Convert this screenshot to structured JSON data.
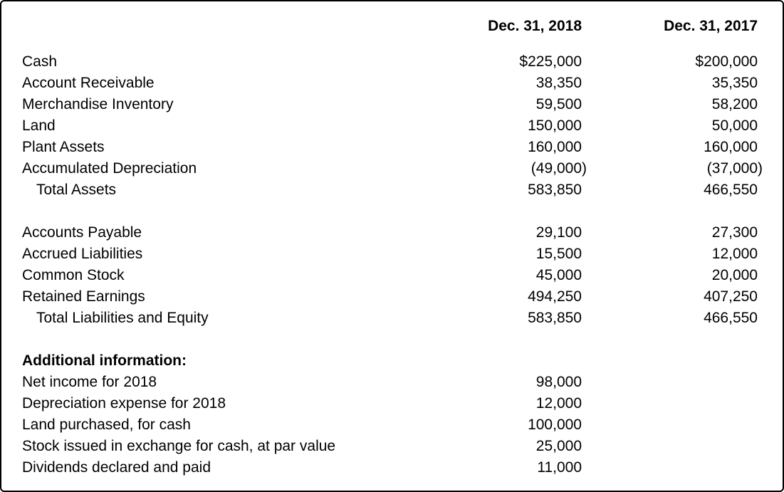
{
  "header": {
    "col_2018": "Dec. 31, 2018",
    "col_2017": "Dec. 31, 2017"
  },
  "balance_sheet": {
    "assets": [
      {
        "label": "Cash",
        "indent": false,
        "values": [
          "$225,000",
          "$200,000"
        ]
      },
      {
        "label": "Account Receivable",
        "indent": false,
        "values": [
          "38,350",
          "35,350"
        ]
      },
      {
        "label": "Merchandise Inventory",
        "indent": false,
        "values": [
          "59,500",
          "58,200"
        ]
      },
      {
        "label": "Land",
        "indent": false,
        "values": [
          "150,000",
          "50,000"
        ]
      },
      {
        "label": "Plant Assets",
        "indent": false,
        "values": [
          "160,000",
          "160,000"
        ]
      },
      {
        "label": "Accumulated Depreciation",
        "indent": false,
        "values": [
          "(49,000)",
          "(37,000)"
        ]
      },
      {
        "label": "Total Assets",
        "indent": true,
        "values": [
          "583,850",
          "466,550"
        ]
      }
    ],
    "liabilities_equity": [
      {
        "label": "Accounts Payable",
        "indent": false,
        "values": [
          "29,100",
          "27,300"
        ]
      },
      {
        "label": "Accrued Liabilities",
        "indent": false,
        "values": [
          "15,500",
          "12,000"
        ]
      },
      {
        "label": "Common Stock",
        "indent": false,
        "values": [
          "45,000",
          "20,000"
        ]
      },
      {
        "label": "Retained Earnings",
        "indent": false,
        "values": [
          "494,250",
          "407,250"
        ]
      },
      {
        "label": "Total Liabilities and Equity",
        "indent": true,
        "values": [
          "583,850",
          "466,550"
        ]
      }
    ]
  },
  "additional_information": {
    "heading": "Additional information:",
    "rows": [
      {
        "label": "Net income for 2018",
        "values": [
          "98,000"
        ]
      },
      {
        "label": "Depreciation expense for 2018",
        "values": [
          "12,000"
        ]
      },
      {
        "label": "Land purchased, for cash",
        "values": [
          "100,000"
        ]
      },
      {
        "label": "Stock issued in exchange for cash, at par value",
        "values": [
          "25,000"
        ]
      },
      {
        "label": "Dividends declared and paid",
        "values": [
          "11,000"
        ]
      }
    ]
  }
}
